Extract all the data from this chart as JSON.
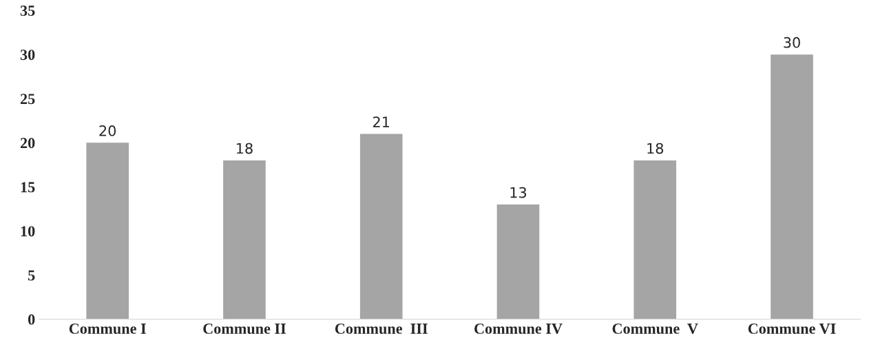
{
  "chart_data": {
    "type": "bar",
    "categories": [
      "Commune I",
      "Commune II",
      "Commune  III",
      "Commune IV",
      "Commune  V",
      "Commune VI"
    ],
    "values": [
      20,
      18,
      21,
      13,
      18,
      30
    ],
    "color": "#a5a5a5",
    "ylim": [
      0,
      35
    ],
    "yticks": [
      0,
      5,
      10,
      15,
      20,
      25,
      30,
      35
    ],
    "grid": false,
    "data_labels": true
  }
}
